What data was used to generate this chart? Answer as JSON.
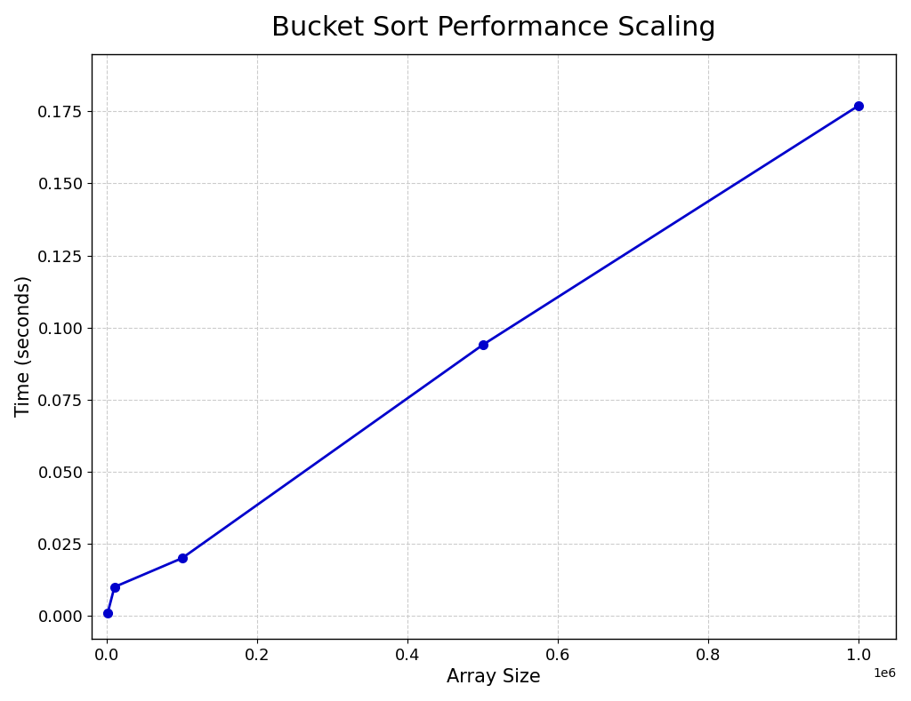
{
  "title": "Bucket Sort Performance Scaling",
  "xlabel": "Array Size",
  "ylabel": "Time (seconds)",
  "x_values": [
    1000,
    10000,
    100000,
    500000,
    1000000
  ],
  "y_values": [
    0.001,
    0.01,
    0.02,
    0.094,
    0.177
  ],
  "line_color": "#0000cc",
  "marker": "o",
  "marker_size": 7,
  "linewidth": 2.0,
  "background_color": "#ffffff",
  "grid_color": "#cccccc",
  "grid_style": "--",
  "title_fontsize": 22,
  "label_fontsize": 15,
  "tick_fontsize": 13,
  "xlim": [
    -20000,
    1050000
  ],
  "ylim": [
    -0.008,
    0.195
  ]
}
